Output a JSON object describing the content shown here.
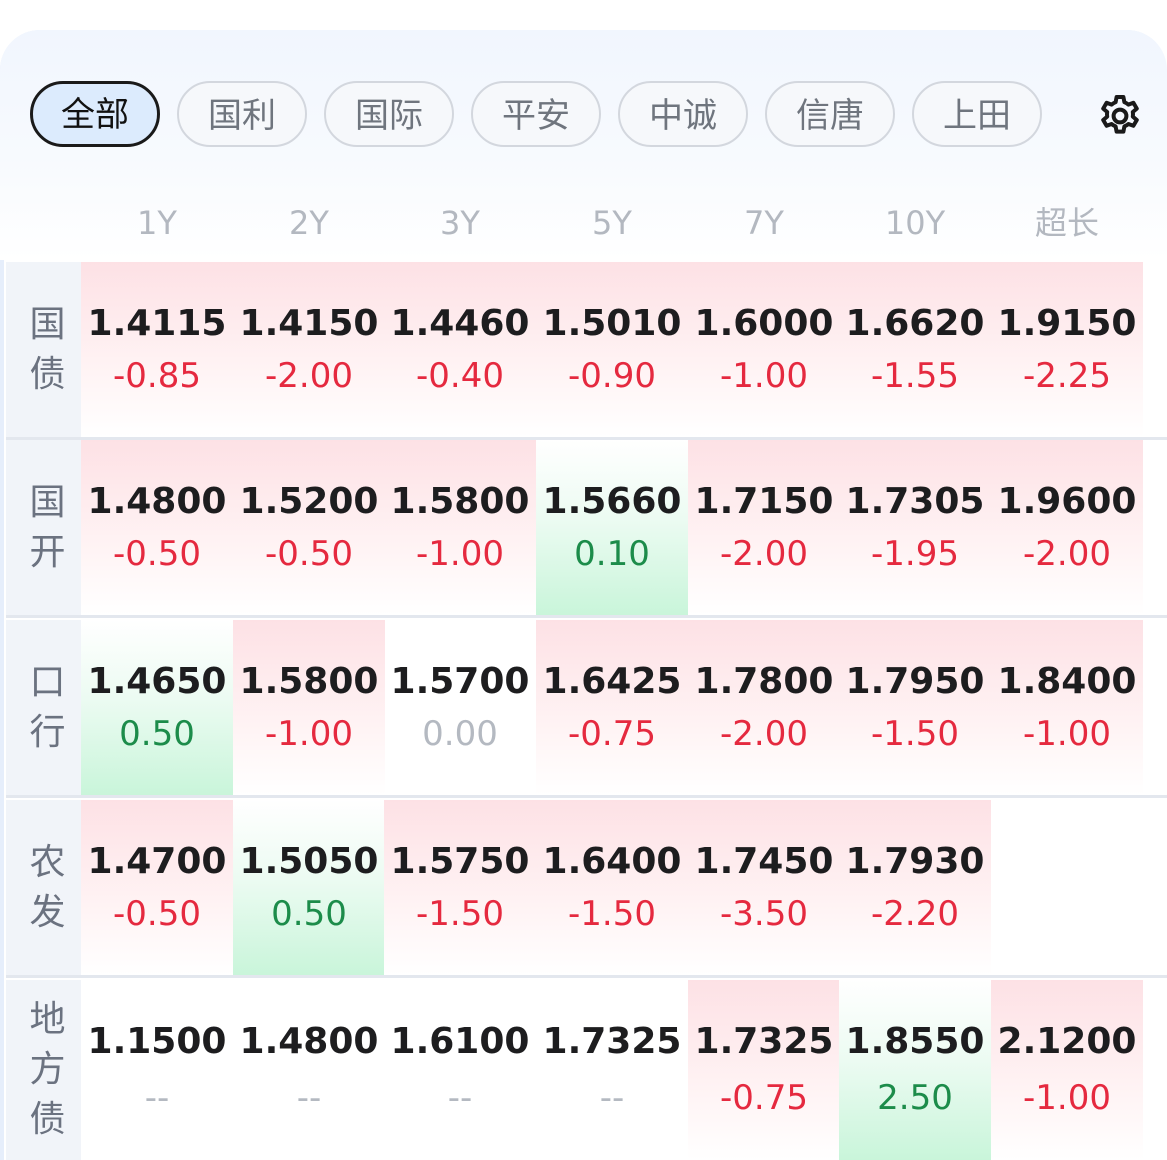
{
  "tabs": [
    {
      "label": "全部",
      "active": true
    },
    {
      "label": "国利",
      "active": false
    },
    {
      "label": "国际",
      "active": false
    },
    {
      "label": "平安",
      "active": false
    },
    {
      "label": "中诚",
      "active": false
    },
    {
      "label": "信唐",
      "active": false
    },
    {
      "label": "上田",
      "active": false
    }
  ],
  "settings_icon": "gear-icon",
  "columns": [
    "1Y",
    "2Y",
    "3Y",
    "5Y",
    "7Y",
    "10Y",
    "超长"
  ],
  "rows": [
    {
      "label": "国债",
      "cells": [
        {
          "value": "1.4115",
          "change": "-0.85",
          "trend": "down"
        },
        {
          "value": "1.4150",
          "change": "-2.00",
          "trend": "down"
        },
        {
          "value": "1.4460",
          "change": "-0.40",
          "trend": "down"
        },
        {
          "value": "1.5010",
          "change": "-0.90",
          "trend": "down"
        },
        {
          "value": "1.6000",
          "change": "-1.00",
          "trend": "down"
        },
        {
          "value": "1.6620",
          "change": "-1.55",
          "trend": "down"
        },
        {
          "value": "1.9150",
          "change": "-2.25",
          "trend": "down"
        }
      ]
    },
    {
      "label": "国开",
      "cells": [
        {
          "value": "1.4800",
          "change": "-0.50",
          "trend": "down"
        },
        {
          "value": "1.5200",
          "change": "-0.50",
          "trend": "down"
        },
        {
          "value": "1.5800",
          "change": "-1.00",
          "trend": "down"
        },
        {
          "value": "1.5660",
          "change": "0.10",
          "trend": "up"
        },
        {
          "value": "1.7150",
          "change": "-2.00",
          "trend": "down"
        },
        {
          "value": "1.7305",
          "change": "-1.95",
          "trend": "down"
        },
        {
          "value": "1.9600",
          "change": "-2.00",
          "trend": "down"
        }
      ]
    },
    {
      "label": "口行",
      "cells": [
        {
          "value": "1.4650",
          "change": "0.50",
          "trend": "up"
        },
        {
          "value": "1.5800",
          "change": "-1.00",
          "trend": "down"
        },
        {
          "value": "1.5700",
          "change": "0.00",
          "trend": "flat"
        },
        {
          "value": "1.6425",
          "change": "-0.75",
          "trend": "down"
        },
        {
          "value": "1.7800",
          "change": "-2.00",
          "trend": "down"
        },
        {
          "value": "1.7950",
          "change": "-1.50",
          "trend": "down"
        },
        {
          "value": "1.8400",
          "change": "-1.00",
          "trend": "down"
        }
      ]
    },
    {
      "label": "农发",
      "cells": [
        {
          "value": "1.4700",
          "change": "-0.50",
          "trend": "down"
        },
        {
          "value": "1.5050",
          "change": "0.50",
          "trend": "up"
        },
        {
          "value": "1.5750",
          "change": "-1.50",
          "trend": "down"
        },
        {
          "value": "1.6400",
          "change": "-1.50",
          "trend": "down"
        },
        {
          "value": "1.7450",
          "change": "-3.50",
          "trend": "down"
        },
        {
          "value": "1.7930",
          "change": "-2.20",
          "trend": "down"
        },
        {
          "value": "",
          "change": "",
          "trend": "flat"
        }
      ]
    },
    {
      "label": "地方债",
      "cells": [
        {
          "value": "1.1500",
          "change": "--",
          "trend": "flat"
        },
        {
          "value": "1.4800",
          "change": "--",
          "trend": "flat"
        },
        {
          "value": "1.6100",
          "change": "--",
          "trend": "flat"
        },
        {
          "value": "1.7325",
          "change": "--",
          "trend": "flat"
        },
        {
          "value": "1.7325",
          "change": "-0.75",
          "trend": "down"
        },
        {
          "value": "1.8550",
          "change": "2.50",
          "trend": "up"
        },
        {
          "value": "2.1200",
          "change": "-1.00",
          "trend": "down"
        }
      ]
    }
  ],
  "colors": {
    "down": "#e5293f",
    "up": "#1c8c4a",
    "flat": "#b4b9c1",
    "active_tab_bg": "#dcebfd"
  }
}
